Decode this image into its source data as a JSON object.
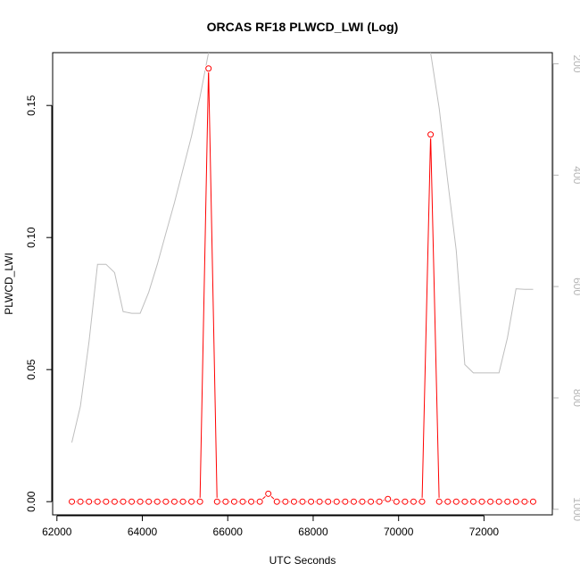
{
  "chart_data": {
    "type": "line",
    "title": "ORCAS RF18 PLWCD_LWI (Log)",
    "xlabel": "UTC Seconds",
    "ylabel": "PLWCD_LWI",
    "xlim": [
      61900,
      73600
    ],
    "ylim": [
      -0.005,
      0.17
    ],
    "x_ticks": [
      62000,
      64000,
      66000,
      68000,
      70000,
      72000
    ],
    "y_ticks": [
      0.0,
      0.05,
      0.1,
      0.15
    ],
    "y_tick_labels": [
      "0.00",
      "0.05",
      "0.10",
      "0.15"
    ],
    "y2lim": [
      1010,
      180
    ],
    "y2_ticks": [
      200,
      400,
      600,
      800,
      1000
    ],
    "grid": false,
    "series": [
      {
        "role": "primary",
        "color": "#ff0000",
        "marker": "open-circle",
        "x": [
          62350,
          62550,
          62750,
          62950,
          63150,
          63350,
          63550,
          63750,
          63950,
          64150,
          64350,
          64550,
          64750,
          64950,
          65150,
          65350,
          65550,
          65750,
          65950,
          66150,
          66350,
          66550,
          66750,
          66950,
          67150,
          67350,
          67550,
          67750,
          67950,
          68150,
          68350,
          68550,
          68750,
          68950,
          69150,
          69350,
          69550,
          69750,
          69950,
          70150,
          70350,
          70550,
          70750,
          70950,
          71150,
          71350,
          71550,
          71750,
          71950,
          72150,
          72350,
          72550,
          72750,
          72950,
          73150
        ],
        "y": [
          0,
          0,
          0,
          0,
          0,
          0,
          0,
          0,
          0,
          0,
          0,
          0,
          0,
          0,
          0,
          0,
          0.164,
          0,
          0,
          0,
          0,
          0,
          0,
          0.003,
          0,
          0,
          0,
          0,
          0,
          0,
          0,
          0,
          0,
          0,
          0,
          0,
          0,
          0.001,
          0,
          0,
          0,
          0,
          0.139,
          0,
          0,
          0,
          0,
          0,
          0,
          0,
          0,
          0,
          0,
          0,
          0
        ]
      },
      {
        "role": "secondary-axis",
        "color": "#bebebe",
        "marker": "none",
        "x": [
          62350,
          62550,
          62750,
          62950,
          63150,
          63350,
          63550,
          63750,
          63950,
          64150,
          64350,
          64550,
          64750,
          64950,
          65150,
          65350,
          65550,
          65750,
          65950,
          66150,
          66350,
          66550,
          66750,
          66950,
          67150,
          67350,
          67550,
          67750,
          67950,
          68150,
          68350,
          68550,
          68750,
          68950,
          69150,
          69350,
          69550,
          69750,
          69950,
          70150,
          70350,
          70550,
          70750,
          70950,
          71150,
          71350,
          71550,
          71750,
          71950,
          72150,
          72350,
          72550,
          72750,
          72950,
          73150
        ],
        "y": [
          880,
          815,
          700,
          560,
          560,
          575,
          645,
          648,
          648,
          610,
          560,
          505,
          450,
          390,
          330,
          260,
          180,
          170,
          165,
          168,
          168,
          168,
          170,
          170,
          168,
          165,
          160,
          160,
          158,
          158,
          155,
          155,
          150,
          150,
          150,
          148,
          145,
          145,
          140,
          140,
          138,
          136,
          180,
          280,
          410,
          535,
          740,
          755,
          755,
          755,
          755,
          692,
          604,
          605,
          605
        ]
      }
    ]
  }
}
